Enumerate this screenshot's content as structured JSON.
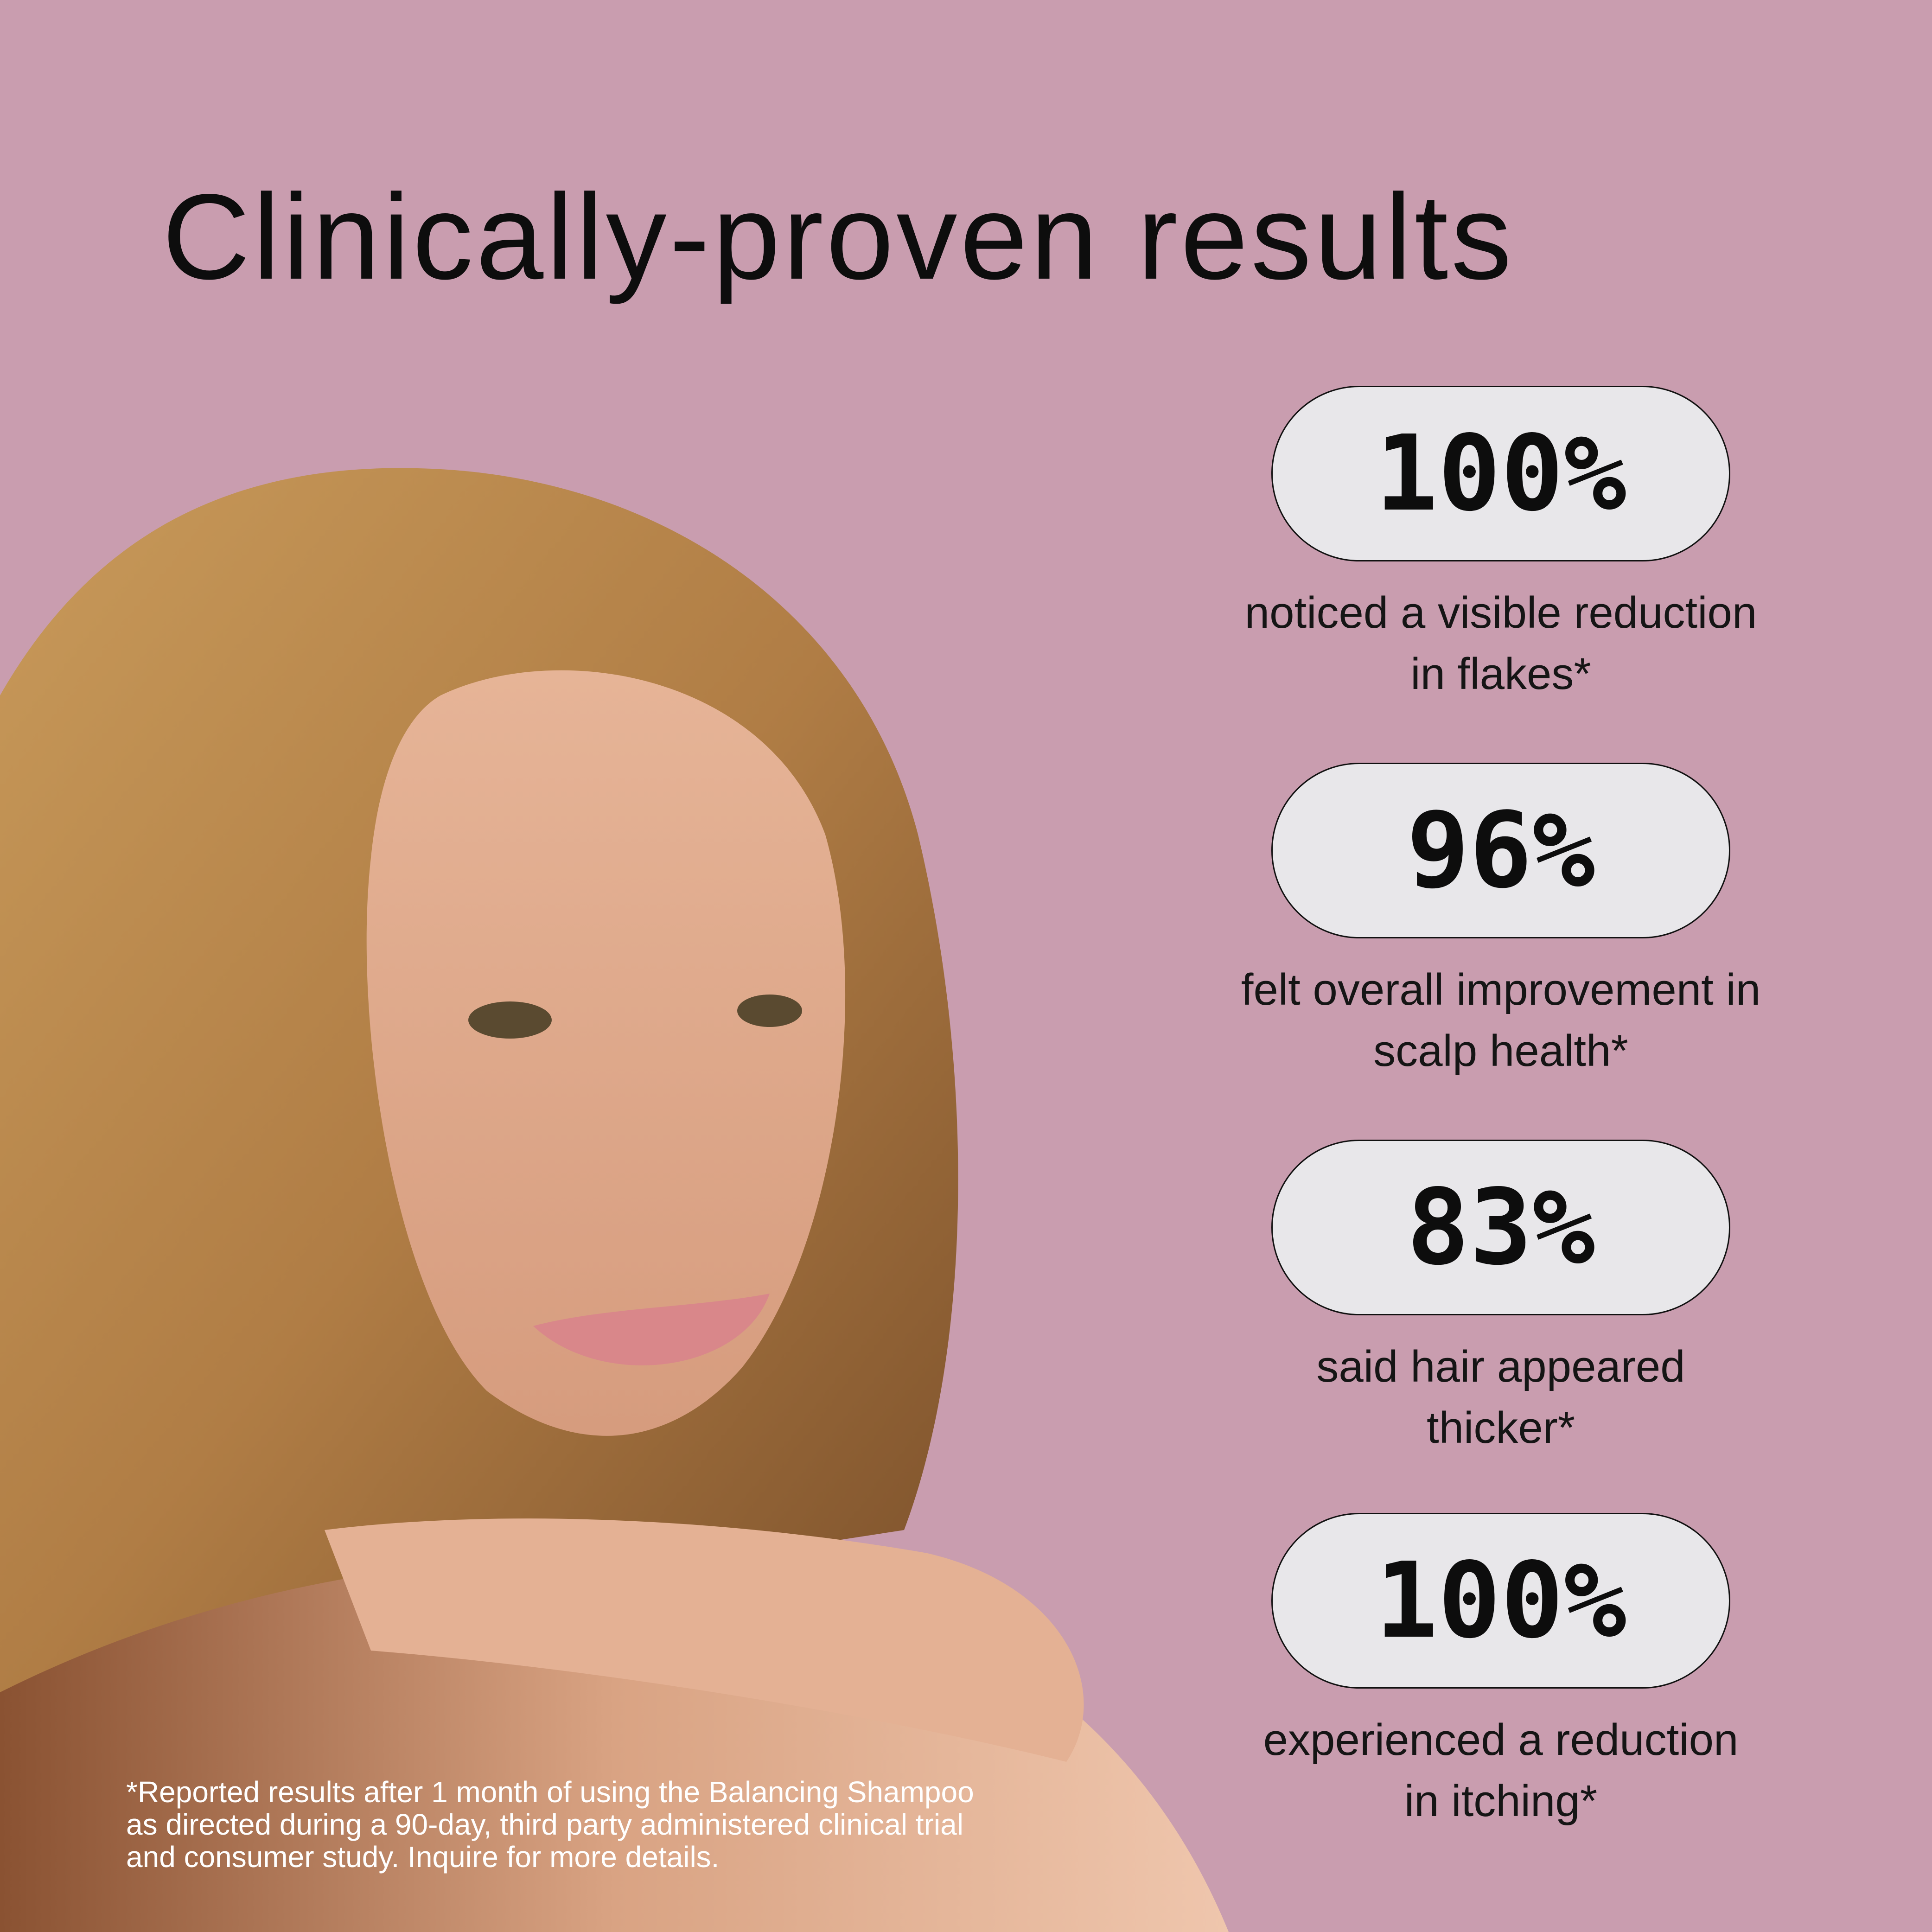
{
  "title": "Clinically-proven results",
  "colors": {
    "background": "#c99daf",
    "pill": "#e8e7ea",
    "text": "#0d0d0d",
    "footnote": "#ffffff"
  },
  "stats": [
    {
      "value": "100%",
      "caption_line1": "noticed a visible reduction",
      "caption_line2": "in flakes*"
    },
    {
      "value": "96%",
      "caption_line1": "felt overall improvement in",
      "caption_line2": "scalp health*"
    },
    {
      "value": "83%",
      "caption_line1": "said hair appeared",
      "caption_line2": "thicker*"
    },
    {
      "value": "100%",
      "caption_line1": "experienced a reduction",
      "caption_line2": "in itching*"
    }
  ],
  "footnote": {
    "line1": "*Reported results after 1 month of using the Balancing Shampoo",
    "line2": "as directed during a 90-day, third party administered clinical trial",
    "line3": "and consumer study. Inquire for more details."
  }
}
